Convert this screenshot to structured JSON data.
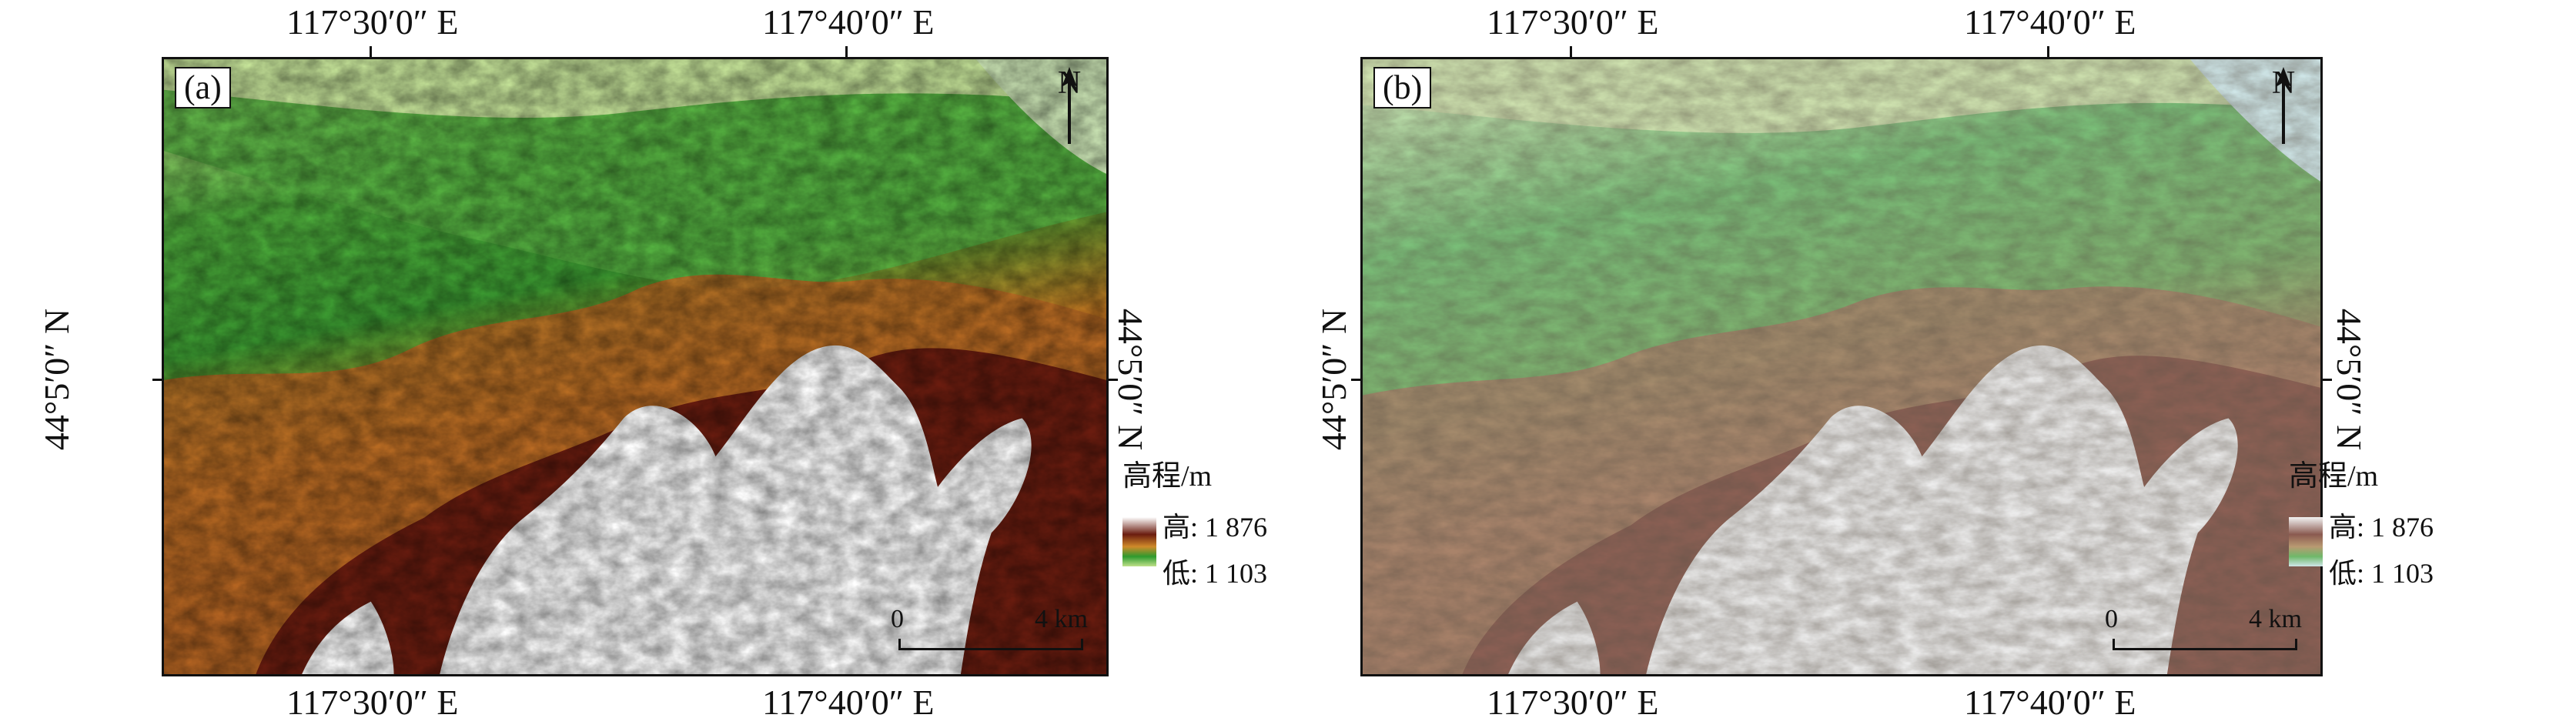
{
  "panels": [
    {
      "label": "(a)",
      "top_lon_left": "117°30′0″ E",
      "top_lon_right": "117°40′0″ E",
      "bottom_lon_left": "117°30′0″ E",
      "bottom_lon_right": "117°40′0″ E",
      "lat_left": "44°5′0″ N",
      "lat_right": "44°5′0″ N",
      "north_label": "N",
      "scale_zero": "0",
      "scale_max": "4 km",
      "legend_title": "高程/m",
      "legend_high": "高: 1 876",
      "legend_low": "低: 1 103",
      "colors": {
        "low": "#2e9a2e",
        "mid": "#d4a22a",
        "upper": "#7a1c10",
        "high": "#ffffff",
        "plain": "#bfe08a"
      }
    },
    {
      "label": "(b)",
      "top_lon_left": "117°30′0″ E",
      "top_lon_right": "117°40′0″ E",
      "bottom_lon_left": "117°30′0″ E",
      "bottom_lon_right": "117°40′0″ E",
      "lat_left": "44°5′0″ N",
      "lat_right": "44°5′0″ N",
      "north_label": "N",
      "scale_zero": "0",
      "scale_max": "4 km",
      "legend_title": "高程/m",
      "legend_high": "高: 1 876",
      "legend_low": "低: 1 103",
      "colors": {
        "low": "#6fb86a",
        "mid": "#b99a72",
        "upper": "#8a5a50",
        "high": "#f2f2f2",
        "plain": "#cfe3c0"
      }
    }
  ]
}
